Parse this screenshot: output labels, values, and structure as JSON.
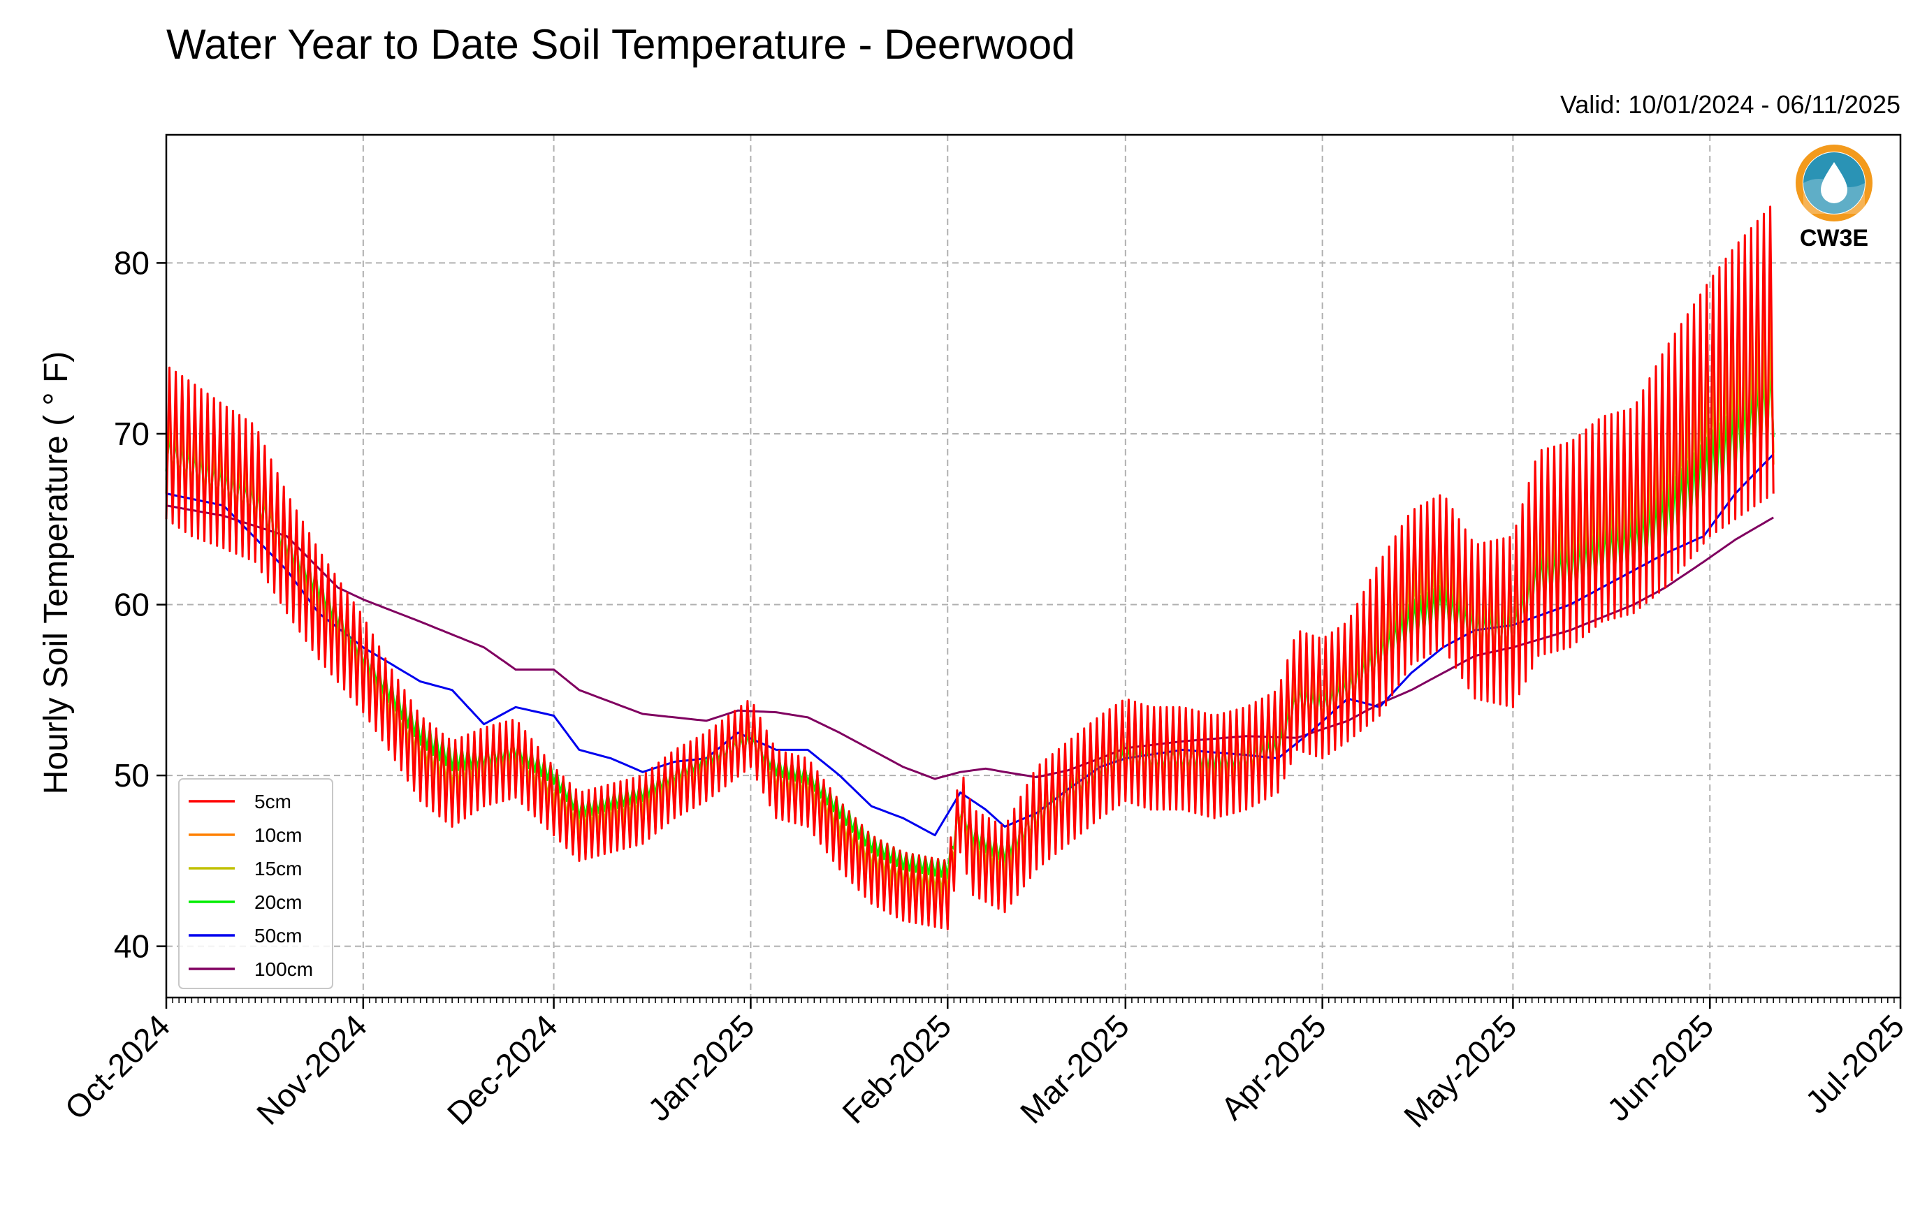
{
  "chart_data": {
    "type": "line",
    "title": "Water Year to Date Soil Temperature - Deerwood",
    "subtitle": "Valid: 10/01/2024 - 06/11/2025",
    "ylabel": "Hourly Soil Temperature ( ° F)",
    "xlabel": "",
    "logo_text": "CW3E",
    "xlim": [
      "2024-10-01",
      "2025-07-01"
    ],
    "ylim": [
      37.0,
      87.5
    ],
    "yticks": [
      40,
      50,
      60,
      70,
      80
    ],
    "xticks": [
      {
        "date": "2024-10-01",
        "label": "Oct-2024"
      },
      {
        "date": "2024-11-01",
        "label": "Nov-2024"
      },
      {
        "date": "2024-12-01",
        "label": "Dec-2024"
      },
      {
        "date": "2025-01-01",
        "label": "Jan-2025"
      },
      {
        "date": "2025-02-01",
        "label": "Feb-2025"
      },
      {
        "date": "2025-03-01",
        "label": "Mar-2025"
      },
      {
        "date": "2025-04-01",
        "label": "Apr-2025"
      },
      {
        "date": "2025-05-01",
        "label": "May-2025"
      },
      {
        "date": "2025-06-01",
        "label": "Jun-2025"
      },
      {
        "date": "2025-07-01",
        "label": "Jul-2025"
      }
    ],
    "grid": true,
    "legend_position": "lower-left",
    "colors": {
      "axis": "#000000",
      "grid": "#b0b0b0",
      "logo_teal": "#2a93b5",
      "logo_orange": "#f39a1c"
    },
    "series": [
      {
        "name": "5cm",
        "color": "#ff0000",
        "x": [
          "2024-10-01",
          "2024-10-05",
          "2024-10-10",
          "2024-10-15",
          "2024-10-20",
          "2024-10-25",
          "2024-11-01",
          "2024-11-05",
          "2024-11-10",
          "2024-11-15",
          "2024-11-20",
          "2024-11-25",
          "2024-12-01",
          "2024-12-05",
          "2024-12-10",
          "2024-12-15",
          "2024-12-20",
          "2024-12-25",
          "2025-01-01",
          "2025-01-05",
          "2025-01-10",
          "2025-01-15",
          "2025-01-20",
          "2025-01-25",
          "2025-02-01",
          "2025-02-03",
          "2025-02-05",
          "2025-02-10",
          "2025-02-15",
          "2025-02-20",
          "2025-02-25",
          "2025-03-01",
          "2025-03-05",
          "2025-03-10",
          "2025-03-15",
          "2025-03-20",
          "2025-03-25",
          "2025-03-28",
          "2025-04-01",
          "2025-04-05",
          "2025-04-10",
          "2025-04-15",
          "2025-04-20",
          "2025-04-25",
          "2025-05-01",
          "2025-05-05",
          "2025-05-10",
          "2025-05-15",
          "2025-05-20",
          "2025-05-25",
          "2025-06-01",
          "2025-06-05",
          "2025-06-11"
        ],
        "y": [
          69.5,
          68.5,
          67.5,
          66.5,
          63.0,
          60.0,
          56.5,
          54.0,
          51.0,
          49.5,
          50.5,
          51.0,
          48.5,
          47.0,
          47.5,
          48.0,
          49.5,
          50.5,
          52.5,
          49.5,
          49.0,
          46.5,
          44.5,
          43.5,
          43.0,
          48.0,
          45.5,
          44.5,
          47.5,
          49.0,
          50.5,
          51.5,
          51.0,
          51.0,
          50.5,
          51.0,
          52.0,
          55.0,
          54.5,
          55.5,
          58.0,
          61.0,
          62.0,
          59.0,
          59.0,
          63.0,
          63.5,
          65.0,
          65.5,
          68.0,
          71.5,
          73.0,
          75.0
        ],
        "amp": [
          4.5,
          4.5,
          4.2,
          4.0,
          3.5,
          3.2,
          2.8,
          2.5,
          2.5,
          2.5,
          2.3,
          2.3,
          2.0,
          2.0,
          2.0,
          2.0,
          2.0,
          2.0,
          2.0,
          2.0,
          2.0,
          2.0,
          2.0,
          2.0,
          2.0,
          2.5,
          2.5,
          2.5,
          3.0,
          3.0,
          3.0,
          3.0,
          3.0,
          3.0,
          3.0,
          3.0,
          3.0,
          3.5,
          3.5,
          3.5,
          4.5,
          4.5,
          4.5,
          4.5,
          5.0,
          6.0,
          6.0,
          6.0,
          6.0,
          7.0,
          7.5,
          8.0,
          8.5
        ]
      },
      {
        "name": "10cm",
        "color": "#ff8000",
        "x": [
          "2024-10-01",
          "2024-10-05",
          "2024-10-10",
          "2024-10-15",
          "2024-10-20",
          "2024-10-25",
          "2024-11-01",
          "2024-11-05",
          "2024-11-10",
          "2024-11-15",
          "2024-11-20",
          "2024-11-25",
          "2024-12-01",
          "2024-12-05",
          "2024-12-10",
          "2024-12-15",
          "2024-12-20",
          "2024-12-25",
          "2025-01-01",
          "2025-01-05",
          "2025-01-10",
          "2025-01-15",
          "2025-01-20",
          "2025-01-25",
          "2025-02-01",
          "2025-02-03",
          "2025-02-05",
          "2025-02-10",
          "2025-02-15",
          "2025-02-20",
          "2025-02-25",
          "2025-03-01",
          "2025-03-05",
          "2025-03-10",
          "2025-03-15",
          "2025-03-20",
          "2025-03-25",
          "2025-03-28",
          "2025-04-01",
          "2025-04-05",
          "2025-04-10",
          "2025-04-15",
          "2025-04-20",
          "2025-04-25",
          "2025-05-01",
          "2025-05-05",
          "2025-05-10",
          "2025-05-15",
          "2025-05-20",
          "2025-05-25",
          "2025-06-01",
          "2025-06-05",
          "2025-06-11"
        ],
        "y": [
          69.3,
          68.3,
          67.3,
          66.3,
          63.2,
          60.3,
          56.6,
          54.2,
          51.3,
          49.8,
          50.6,
          51.1,
          48.8,
          47.3,
          47.8,
          48.3,
          49.7,
          50.6,
          52.4,
          49.7,
          49.3,
          46.9,
          44.9,
          43.9,
          43.4,
          48.1,
          45.8,
          44.8,
          47.6,
          49.1,
          50.5,
          51.4,
          51.0,
          51.0,
          50.6,
          51.0,
          52.0,
          54.8,
          54.4,
          55.3,
          57.6,
          60.4,
          61.4,
          58.9,
          58.9,
          62.5,
          63.0,
          64.3,
          64.8,
          67.0,
          70.4,
          71.8,
          73.6
        ],
        "amp": [
          2.8,
          2.8,
          2.6,
          2.5,
          2.2,
          2.0,
          1.8,
          1.6,
          1.6,
          1.6,
          1.5,
          1.5,
          1.3,
          1.3,
          1.3,
          1.3,
          1.3,
          1.3,
          1.3,
          1.3,
          1.3,
          1.3,
          1.3,
          1.3,
          1.3,
          1.6,
          1.6,
          1.6,
          1.9,
          1.9,
          1.9,
          1.9,
          1.9,
          1.9,
          1.9,
          1.9,
          1.9,
          2.2,
          2.2,
          2.2,
          2.8,
          2.8,
          2.8,
          2.8,
          3.2,
          3.8,
          3.8,
          3.8,
          3.8,
          4.4,
          4.7,
          5.0,
          5.4
        ]
      },
      {
        "name": "15cm",
        "color": "#c0c000",
        "x": [
          "2024-10-01",
          "2024-10-05",
          "2024-10-10",
          "2024-10-15",
          "2024-10-20",
          "2024-10-25",
          "2024-11-01",
          "2024-11-05",
          "2024-11-10",
          "2024-11-15",
          "2024-11-20",
          "2024-11-25",
          "2024-12-01",
          "2024-12-05",
          "2024-12-10",
          "2024-12-15",
          "2024-12-20",
          "2024-12-25",
          "2025-01-01",
          "2025-01-05",
          "2025-01-10",
          "2025-01-15",
          "2025-01-20",
          "2025-01-25",
          "2025-02-01",
          "2025-02-03",
          "2025-02-05",
          "2025-02-10",
          "2025-02-15",
          "2025-02-20",
          "2025-02-25",
          "2025-03-01",
          "2025-03-05",
          "2025-03-10",
          "2025-03-15",
          "2025-03-20",
          "2025-03-25",
          "2025-03-28",
          "2025-04-01",
          "2025-04-05",
          "2025-04-10",
          "2025-04-15",
          "2025-04-20",
          "2025-04-25",
          "2025-05-01",
          "2025-05-05",
          "2025-05-10",
          "2025-05-15",
          "2025-05-20",
          "2025-05-25",
          "2025-06-01",
          "2025-06-05",
          "2025-06-11"
        ],
        "y": [
          69.1,
          68.1,
          67.1,
          66.1,
          63.3,
          60.6,
          56.8,
          54.5,
          51.7,
          50.2,
          50.8,
          51.2,
          49.2,
          47.6,
          48.1,
          48.6,
          49.9,
          50.7,
          52.2,
          49.9,
          49.6,
          47.3,
          45.3,
          44.3,
          43.9,
          48.1,
          46.1,
          45.1,
          47.7,
          49.1,
          50.4,
          51.3,
          51.0,
          51.0,
          50.7,
          51.0,
          51.9,
          54.6,
          54.3,
          55.1,
          57.2,
          59.8,
          60.7,
          58.7,
          58.7,
          62.0,
          62.5,
          63.6,
          64.1,
          66.0,
          69.3,
          70.6,
          72.3
        ],
        "amp": [
          1.8,
          1.8,
          1.7,
          1.6,
          1.4,
          1.3,
          1.1,
          1.0,
          1.0,
          1.0,
          0.9,
          0.9,
          0.8,
          0.8,
          0.8,
          0.8,
          0.8,
          0.8,
          0.8,
          0.8,
          0.8,
          0.8,
          0.8,
          0.8,
          0.8,
          1.0,
          1.0,
          1.0,
          1.2,
          1.2,
          1.2,
          1.2,
          1.2,
          1.2,
          1.2,
          1.2,
          1.2,
          1.4,
          1.4,
          1.4,
          1.8,
          1.8,
          1.8,
          1.8,
          2.0,
          2.4,
          2.4,
          2.4,
          2.4,
          2.8,
          3.0,
          3.2,
          3.4
        ]
      },
      {
        "name": "20cm",
        "color": "#00ee00",
        "x": [
          "2024-10-01",
          "2024-10-05",
          "2024-10-10",
          "2024-10-15",
          "2024-10-20",
          "2024-10-25",
          "2024-11-01",
          "2024-11-05",
          "2024-11-10",
          "2024-11-15",
          "2024-11-20",
          "2024-11-25",
          "2024-12-01",
          "2024-12-05",
          "2024-12-10",
          "2024-12-15",
          "2024-12-20",
          "2024-12-25",
          "2025-01-01",
          "2025-01-05",
          "2025-01-10",
          "2025-01-15",
          "2025-01-20",
          "2025-01-25",
          "2025-02-01",
          "2025-02-03",
          "2025-02-05",
          "2025-02-10",
          "2025-02-15",
          "2025-02-20",
          "2025-02-25",
          "2025-03-01",
          "2025-03-05",
          "2025-03-10",
          "2025-03-15",
          "2025-03-20",
          "2025-03-25",
          "2025-03-28",
          "2025-04-01",
          "2025-04-05",
          "2025-04-10",
          "2025-04-15",
          "2025-04-20",
          "2025-04-25",
          "2025-05-01",
          "2025-05-05",
          "2025-05-10",
          "2025-05-15",
          "2025-05-20",
          "2025-05-25",
          "2025-06-01",
          "2025-06-05",
          "2025-06-11"
        ],
        "y": [
          69.0,
          68.0,
          67.0,
          66.0,
          63.5,
          61.0,
          57.0,
          55.0,
          52.5,
          51.0,
          51.0,
          51.5,
          50.0,
          48.0,
          48.5,
          49.0,
          50.0,
          51.0,
          52.0,
          50.5,
          50.0,
          48.0,
          46.0,
          45.0,
          44.5,
          48.0,
          46.5,
          45.5,
          47.5,
          49.0,
          50.5,
          51.0,
          51.0,
          51.0,
          51.0,
          51.0,
          51.5,
          54.5,
          54.0,
          55.0,
          57.0,
          59.0,
          60.0,
          58.5,
          58.5,
          61.5,
          62.0,
          63.0,
          63.5,
          65.0,
          68.0,
          69.5,
          72.0
        ],
        "amp": [
          1.2,
          1.2,
          1.1,
          1.0,
          0.9,
          0.8,
          0.7,
          0.7,
          0.7,
          0.7,
          0.6,
          0.6,
          0.5,
          0.5,
          0.5,
          0.5,
          0.5,
          0.5,
          0.5,
          0.5,
          0.5,
          0.5,
          0.5,
          0.5,
          0.5,
          0.6,
          0.6,
          0.6,
          0.8,
          0.8,
          0.8,
          0.8,
          0.8,
          0.8,
          0.8,
          0.8,
          0.8,
          0.9,
          0.9,
          0.9,
          1.2,
          1.2,
          1.2,
          1.2,
          1.3,
          1.6,
          1.6,
          1.6,
          1.6,
          1.8,
          2.0,
          2.1,
          2.2
        ]
      },
      {
        "name": "50cm",
        "color": "#0000ee",
        "x": [
          "2024-10-01",
          "2024-10-10",
          "2024-10-20",
          "2024-10-25",
          "2024-11-01",
          "2024-11-10",
          "2024-11-15",
          "2024-11-20",
          "2024-11-25",
          "2024-12-01",
          "2024-12-05",
          "2024-12-10",
          "2024-12-15",
          "2024-12-20",
          "2024-12-25",
          "2024-12-30",
          "2025-01-05",
          "2025-01-10",
          "2025-01-15",
          "2025-01-20",
          "2025-01-25",
          "2025-01-30",
          "2025-02-03",
          "2025-02-07",
          "2025-02-10",
          "2025-02-15",
          "2025-02-20",
          "2025-02-25",
          "2025-03-01",
          "2025-03-10",
          "2025-03-20",
          "2025-03-25",
          "2025-03-30",
          "2025-04-05",
          "2025-04-10",
          "2025-04-15",
          "2025-04-20",
          "2025-04-25",
          "2025-05-01",
          "2025-05-10",
          "2025-05-20",
          "2025-05-25",
          "2025-05-31",
          "2025-06-05",
          "2025-06-11"
        ],
        "y": [
          66.5,
          65.8,
          62.0,
          59.5,
          57.5,
          55.5,
          55.0,
          53.0,
          54.0,
          53.5,
          51.5,
          51.0,
          50.2,
          50.8,
          51.0,
          52.5,
          51.5,
          51.5,
          50.0,
          48.2,
          47.5,
          46.5,
          49.0,
          48.0,
          47.0,
          47.8,
          49.2,
          50.5,
          51.0,
          51.5,
          51.2,
          51.0,
          52.5,
          54.5,
          54.0,
          56.0,
          57.5,
          58.5,
          58.8,
          60.0,
          62.0,
          63.0,
          64.0,
          66.5,
          68.8
        ]
      },
      {
        "name": "100cm",
        "color": "#800060",
        "x": [
          "2024-10-01",
          "2024-10-10",
          "2024-10-20",
          "2024-10-28",
          "2024-11-01",
          "2024-11-10",
          "2024-11-20",
          "2024-11-25",
          "2024-12-01",
          "2024-12-05",
          "2024-12-10",
          "2024-12-15",
          "2024-12-20",
          "2024-12-25",
          "2024-12-30",
          "2025-01-05",
          "2025-01-10",
          "2025-01-15",
          "2025-01-20",
          "2025-01-25",
          "2025-01-30",
          "2025-02-03",
          "2025-02-07",
          "2025-02-10",
          "2025-02-15",
          "2025-02-20",
          "2025-02-25",
          "2025-03-01",
          "2025-03-10",
          "2025-03-20",
          "2025-03-28",
          "2025-04-05",
          "2025-04-10",
          "2025-04-15",
          "2025-04-20",
          "2025-04-25",
          "2025-05-01",
          "2025-05-10",
          "2025-05-20",
          "2025-05-25",
          "2025-05-31",
          "2025-06-05",
          "2025-06-11"
        ],
        "y": [
          65.8,
          65.2,
          64.0,
          61.0,
          60.3,
          59.0,
          57.5,
          56.2,
          56.2,
          55.0,
          54.3,
          53.6,
          53.4,
          53.2,
          53.8,
          53.7,
          53.4,
          52.5,
          51.5,
          50.5,
          49.8,
          50.2,
          50.4,
          50.2,
          49.9,
          50.3,
          51.0,
          51.6,
          52.0,
          52.3,
          52.2,
          53.2,
          54.2,
          55.0,
          56.0,
          57.0,
          57.5,
          58.5,
          60.0,
          61.0,
          62.5,
          63.8,
          65.1
        ]
      }
    ]
  }
}
